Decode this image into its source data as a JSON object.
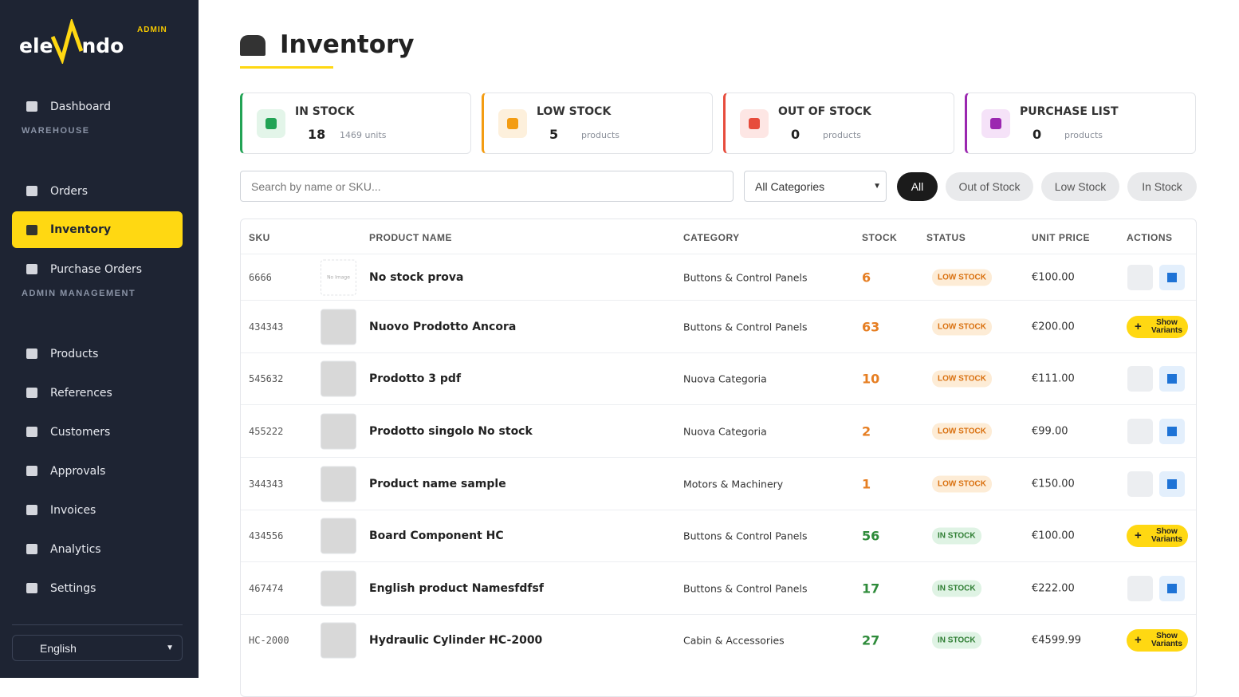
{
  "sidebar": {
    "logo": [
      "ele",
      "ndo"
    ],
    "badge": "ADMIN",
    "sections": [
      {
        "items": [
          "Dashboard"
        ]
      },
      {
        "title": "WAREHOUSE",
        "items": [
          "Orders",
          "Inventory",
          "Purchase Orders"
        ]
      },
      {
        "title": "ADMIN MANAGEMENT",
        "items": [
          "Products",
          "References",
          "Customers",
          "Approvals",
          "Invoices",
          "Analytics",
          "Settings"
        ]
      }
    ],
    "language": "English"
  },
  "header": {
    "title": "Inventory"
  },
  "stats": [
    {
      "label": "IN STOCK",
      "value": 18,
      "sub": "1469 units"
    },
    {
      "label": "LOW STOCK",
      "value": 5,
      "sub": "products"
    },
    {
      "label": "OUT OF STOCK",
      "value": 0,
      "sub": "products"
    },
    {
      "label": "PURCHASE LIST",
      "value": 0,
      "sub": "products"
    }
  ],
  "filters": {
    "search_placeholder": "Search by name or SKU...",
    "category": "All Categories",
    "tabs": [
      "All",
      "Out of Stock",
      "Low Stock",
      "In Stock"
    ]
  },
  "table": {
    "headers": [
      "SKU",
      "PRODUCT NAME",
      "CATEGORY",
      "STOCK",
      "STATUS",
      "UNIT PRICE",
      "ACTIONS"
    ],
    "rows": [
      {
        "sku": "6666",
        "image_text": "No Image",
        "name": "No stock prova",
        "category": "Buttons & Control Panels",
        "stock": 6,
        "status": "LOW STOCK",
        "price": "€100.00"
      },
      {
        "sku": "434343",
        "name": "Nuovo Prodotto Ancora",
        "category": "Buttons & Control Panels",
        "stock": 63,
        "status": "LOW STOCK",
        "price": "€200.00",
        "variants_button": "Show Variants"
      },
      {
        "sku": "545632",
        "name": "Prodotto 3 pdf",
        "category": "Nuova Categoria",
        "stock": 10,
        "status": "LOW STOCK",
        "price": "€111.00"
      },
      {
        "sku": "455222",
        "name": "Prodotto singolo No stock",
        "category": "Nuova Categoria",
        "stock": 2,
        "status": "LOW STOCK",
        "price": "€99.00"
      },
      {
        "sku": "344343",
        "name": "Product name sample",
        "category": "Motors & Machinery",
        "stock": 1,
        "status": "LOW STOCK",
        "price": "€150.00"
      },
      {
        "sku": "434556",
        "name": "Board Component HC",
        "category": "Buttons & Control Panels",
        "stock": 56,
        "status": "IN STOCK",
        "price": "€100.00",
        "variants_button": "Show Variants"
      },
      {
        "sku": "467474",
        "name": "English product Namesfdfsf",
        "category": "Buttons & Control Panels",
        "stock": 17,
        "status": "IN STOCK",
        "price": "€222.00"
      },
      {
        "sku": "HC-2000",
        "name": "Hydraulic Cylinder HC-2000",
        "category": "Cabin & Accessories",
        "stock": 27,
        "status": "IN STOCK",
        "price": "€4599.99",
        "variants_button": "Show Variants"
      }
    ]
  }
}
